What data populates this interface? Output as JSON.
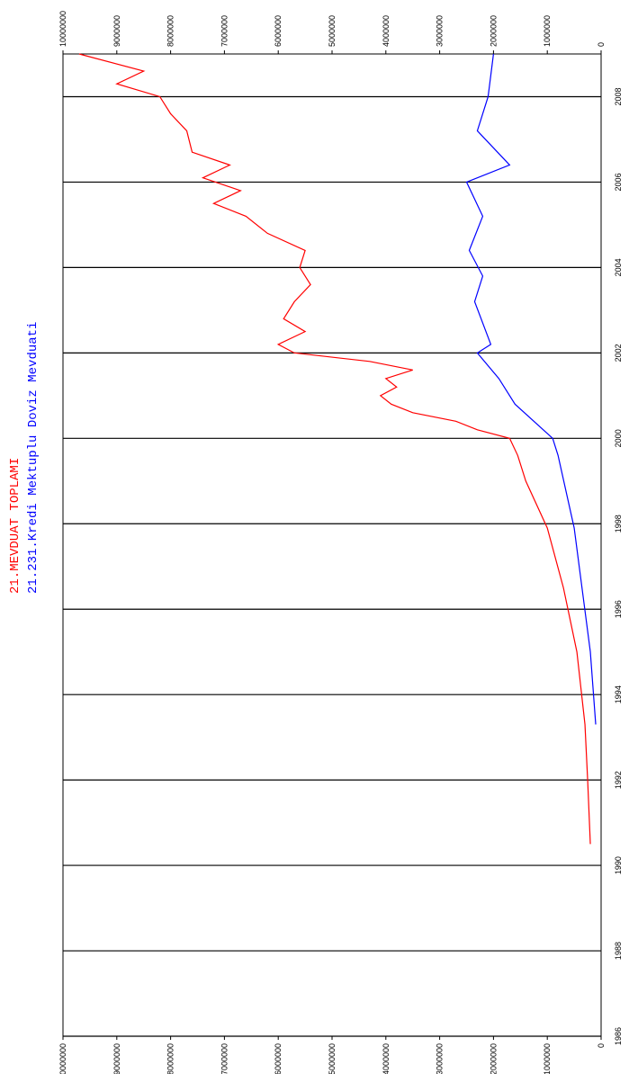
{
  "chart_data": {
    "type": "line",
    "series": [
      {
        "name": "21.MEVDUAT TOPLAMI",
        "color": "#ff0000",
        "x": [
          1990.5,
          1992,
          1993.3,
          1995,
          1996.5,
          1997.9,
          1999,
          1999.6,
          2000,
          2000.2,
          2000.4,
          2000.6,
          2000.8,
          2001,
          2001.2,
          2001.4,
          2001.6,
          2001.8,
          2002,
          2002.2,
          2002.5,
          2002.8,
          2003.2,
          2003.6,
          2004,
          2004.4,
          2004.8,
          2005.2,
          2005.5,
          2005.8,
          2006.1,
          2006.4,
          2006.7,
          2007.2,
          2007.6,
          2008,
          2008.3,
          2008.6,
          2009
        ],
        "values": [
          200000,
          250000,
          300000,
          450000,
          700000,
          1000000,
          1400000,
          1550000,
          1700000,
          2300000,
          2700000,
          3500000,
          3900000,
          4100000,
          3800000,
          4000000,
          3500000,
          4300000,
          5700000,
          6000000,
          5500000,
          5900000,
          5700000,
          5400000,
          5600000,
          5500000,
          6200000,
          6600000,
          7200000,
          6700000,
          7400000,
          6900000,
          7600000,
          7700000,
          8000000,
          8200000,
          9000000,
          8500000,
          9700000
        ]
      },
      {
        "name": "21.231.Kredi Mektuplu Doviz Mevduati",
        "color": "#0000ff",
        "x": [
          1993.3,
          1995,
          1997.9,
          1999.6,
          2000,
          2000.8,
          2001.4,
          2002,
          2002.2,
          2003.2,
          2003.8,
          2004.4,
          2005.2,
          2006,
          2006.4,
          2007.2,
          2008,
          2009
        ],
        "values": [
          100000,
          200000,
          500000,
          800000,
          900000,
          1600000,
          1900000,
          2300000,
          2050000,
          2350000,
          2200000,
          2450000,
          2200000,
          2500000,
          1700000,
          2300000,
          2100000,
          2000000
        ]
      }
    ],
    "xlim": [
      1986,
      2009
    ],
    "xticks": [
      1986,
      1988,
      1990,
      1992,
      1994,
      1996,
      1998,
      2000,
      2002,
      2004,
      2006,
      2008
    ],
    "ylim": [
      0,
      10000000
    ],
    "yticks": [
      0,
      1000000,
      2000000,
      3000000,
      4000000,
      5000000,
      6000000,
      7000000,
      8000000,
      9000000,
      10000000
    ],
    "grid": true
  }
}
